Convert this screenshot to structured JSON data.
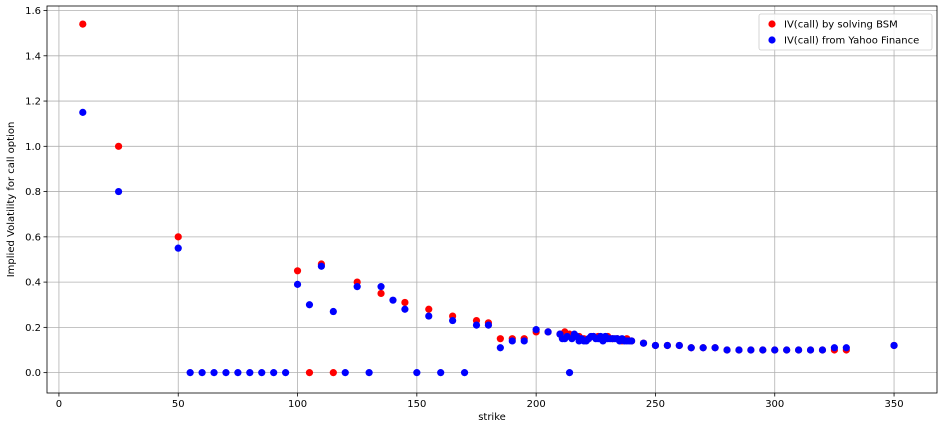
{
  "chart_data": {
    "type": "scatter",
    "xlabel": "strike",
    "ylabel": "Implied Volatility for call option",
    "xlim": [
      -5,
      368
    ],
    "ylim": [
      -0.09,
      1.62
    ],
    "xticks": [
      0,
      50,
      100,
      150,
      200,
      250,
      300,
      350
    ],
    "yticks": [
      0.0,
      0.2,
      0.4,
      0.6,
      0.8,
      1.0,
      1.2,
      1.4,
      1.6
    ],
    "grid": true,
    "legend_position": "top-right",
    "series": [
      {
        "name": "IV(call) by solving BSM",
        "color": "#ff0000",
        "x": [
          10,
          25,
          50,
          100,
          105,
          110,
          115,
          125,
          135,
          145,
          155,
          165,
          175,
          180,
          185,
          190,
          195,
          200,
          205,
          210,
          212,
          214,
          216,
          218,
          220,
          222,
          224,
          226,
          228,
          230,
          232,
          234,
          236,
          238,
          240,
          245,
          250,
          255,
          260,
          265,
          270,
          275,
          280,
          285,
          290,
          295,
          300,
          305,
          310,
          315,
          320,
          325,
          330,
          350
        ],
        "y": [
          1.54,
          1.0,
          0.6,
          0.45,
          0.0,
          0.48,
          0.0,
          0.4,
          0.35,
          0.31,
          0.28,
          0.25,
          0.23,
          0.22,
          0.15,
          0.15,
          0.15,
          0.18,
          0.18,
          0.17,
          0.18,
          0.17,
          0.16,
          0.16,
          0.15,
          0.15,
          0.16,
          0.16,
          0.15,
          0.16,
          0.15,
          0.15,
          0.14,
          0.15,
          0.14,
          0.13,
          0.12,
          0.12,
          0.12,
          0.11,
          0.11,
          0.11,
          0.1,
          0.1,
          0.1,
          0.1,
          0.1,
          0.1,
          0.1,
          0.1,
          0.1,
          0.1,
          0.1,
          0.12
        ]
      },
      {
        "name": "IV(call) from Yahoo Finance",
        "color": "#0000ff",
        "x": [
          10,
          25,
          50,
          55,
          60,
          65,
          70,
          75,
          80,
          85,
          90,
          95,
          100,
          105,
          110,
          115,
          120,
          125,
          130,
          135,
          140,
          145,
          150,
          155,
          160,
          165,
          170,
          175,
          180,
          185,
          190,
          195,
          200,
          205,
          210,
          211,
          212,
          213,
          214,
          215,
          216,
          217,
          218,
          219,
          220,
          221,
          222,
          223,
          224,
          225,
          226,
          227,
          228,
          229,
          230,
          231,
          232,
          233,
          234,
          235,
          236,
          237,
          238,
          239,
          240,
          245,
          250,
          255,
          260,
          265,
          270,
          275,
          280,
          285,
          290,
          295,
          300,
          305,
          310,
          315,
          320,
          325,
          330,
          350
        ],
        "y": [
          1.15,
          0.8,
          0.55,
          0.0,
          0.0,
          0.0,
          0.0,
          0.0,
          0.0,
          0.0,
          0.0,
          0.0,
          0.39,
          0.3,
          0.47,
          0.27,
          0.0,
          0.38,
          0.0,
          0.38,
          0.32,
          0.28,
          0.0,
          0.25,
          0.0,
          0.23,
          0.0,
          0.21,
          0.21,
          0.11,
          0.14,
          0.14,
          0.19,
          0.18,
          0.17,
          0.15,
          0.15,
          0.16,
          0.0,
          0.15,
          0.17,
          0.16,
          0.14,
          0.15,
          0.14,
          0.14,
          0.15,
          0.16,
          0.16,
          0.15,
          0.15,
          0.16,
          0.14,
          0.16,
          0.15,
          0.15,
          0.15,
          0.15,
          0.15,
          0.14,
          0.15,
          0.14,
          0.14,
          0.14,
          0.14,
          0.13,
          0.12,
          0.12,
          0.12,
          0.11,
          0.11,
          0.11,
          0.1,
          0.1,
          0.1,
          0.1,
          0.1,
          0.1,
          0.1,
          0.1,
          0.1,
          0.11,
          0.11,
          0.12
        ]
      }
    ]
  }
}
